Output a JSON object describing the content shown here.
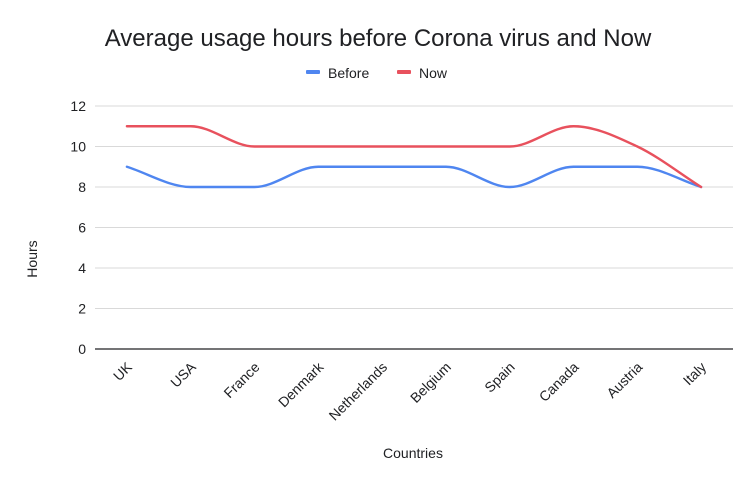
{
  "chart_data": {
    "type": "line",
    "title": "Average usage hours before Corona virus and Now",
    "xlabel": "Countries",
    "ylabel": "Hours",
    "categories": [
      "UK",
      "USA",
      "France",
      "Denmark",
      "Netherlands",
      "Belgium",
      "Spain",
      "Canada",
      "Austria",
      "Italy"
    ],
    "series": [
      {
        "name": "Before",
        "color": "#4f86f0",
        "values": [
          9,
          8,
          8,
          9,
          9,
          9,
          8,
          9,
          9,
          8
        ]
      },
      {
        "name": "Now",
        "color": "#e8515d",
        "values": [
          11,
          11,
          10,
          10,
          10,
          10,
          10,
          11,
          10,
          8
        ]
      }
    ],
    "ylim": [
      0,
      12
    ],
    "yticks": [
      0,
      2,
      4,
      6,
      8,
      10,
      12
    ],
    "grid": true,
    "legend_position": "top"
  }
}
